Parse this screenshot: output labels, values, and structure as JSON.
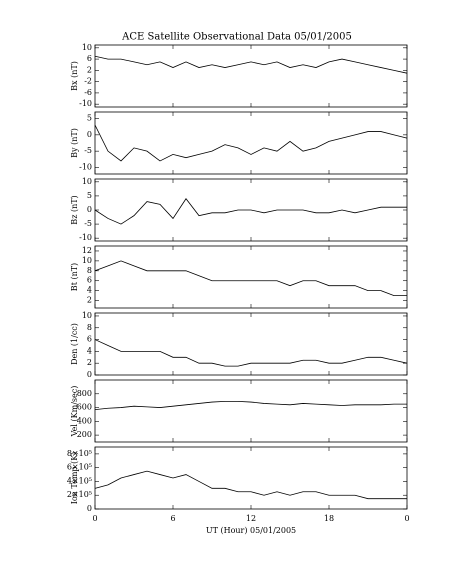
{
  "chart_data": [
    {
      "type": "line",
      "title": "ACE Satellite Observational Data   05/01/2005",
      "y_label": "Bx (nT)",
      "x": [
        0,
        1,
        2,
        3,
        4,
        5,
        6,
        7,
        8,
        9,
        10,
        11,
        12,
        13,
        14,
        15,
        16,
        17,
        18,
        19,
        20,
        21,
        22,
        23,
        24
      ],
      "values": [
        7,
        6,
        6,
        5,
        4,
        5,
        3,
        5,
        3,
        4,
        3,
        4,
        5,
        4,
        5,
        3,
        4,
        3,
        5,
        6,
        5,
        4,
        3,
        2,
        1
      ],
      "xlim": [
        0,
        24
      ],
      "ylim": [
        -11,
        11
      ],
      "yticks": [
        -10,
        -6,
        -2,
        2,
        6,
        10
      ],
      "color": "#000000"
    },
    {
      "type": "line",
      "y_label": "By (nT)",
      "x": [
        0,
        1,
        2,
        3,
        4,
        5,
        6,
        7,
        8,
        9,
        10,
        11,
        12,
        13,
        14,
        15,
        16,
        17,
        18,
        19,
        20,
        21,
        22,
        23,
        24
      ],
      "values": [
        3,
        -5,
        -8,
        -4,
        -5,
        -8,
        -6,
        -7,
        -6,
        -5,
        -3,
        -4,
        -6,
        -4,
        -5,
        -2,
        -5,
        -4,
        -2,
        -1,
        0,
        1,
        1,
        0,
        -1
      ],
      "xlim": [
        0,
        24
      ],
      "ylim": [
        -12,
        7
      ],
      "yticks": [
        -10,
        -5,
        0,
        5
      ],
      "color": "#000000"
    },
    {
      "type": "line",
      "y_label": "Bz (nT)",
      "x": [
        0,
        1,
        2,
        3,
        4,
        5,
        6,
        7,
        8,
        9,
        10,
        11,
        12,
        13,
        14,
        15,
        16,
        17,
        18,
        19,
        20,
        21,
        22,
        23,
        24
      ],
      "values": [
        0,
        -3,
        -5,
        -2,
        3,
        2,
        -3,
        4,
        -2,
        -1,
        -1,
        0,
        0,
        -1,
        0,
        0,
        0,
        -1,
        -1,
        0,
        -1,
        0,
        1,
        1,
        1
      ],
      "xlim": [
        0,
        24
      ],
      "ylim": [
        -11,
        11
      ],
      "yticks": [
        -10,
        -5,
        0,
        5,
        10
      ],
      "color": "#000000"
    },
    {
      "type": "line",
      "y_label": "Bt (nT)",
      "x": [
        0,
        1,
        2,
        3,
        4,
        5,
        6,
        7,
        8,
        9,
        10,
        11,
        12,
        13,
        14,
        15,
        16,
        17,
        18,
        19,
        20,
        21,
        22,
        23,
        24
      ],
      "values": [
        8,
        9,
        10,
        9,
        8,
        8,
        8,
        8,
        7,
        6,
        6,
        6,
        6,
        6,
        6,
        5,
        6,
        6,
        5,
        5,
        5,
        4,
        4,
        3,
        3
      ],
      "xlim": [
        0,
        24
      ],
      "ylim": [
        0.5,
        13
      ],
      "yticks": [
        2,
        4,
        6,
        8,
        10,
        12
      ],
      "color": "#000000"
    },
    {
      "type": "line",
      "y_label": "Den (1/cc)",
      "x": [
        0,
        1,
        2,
        3,
        4,
        5,
        6,
        7,
        8,
        9,
        10,
        11,
        12,
        13,
        14,
        15,
        16,
        17,
        18,
        19,
        20,
        21,
        22,
        23,
        24
      ],
      "values": [
        6,
        5,
        4,
        4,
        4,
        4,
        3,
        3,
        2,
        2,
        1.5,
        1.5,
        2,
        2,
        2,
        2,
        2.5,
        2.5,
        2,
        2,
        2.5,
        3,
        3,
        2.5,
        2
      ],
      "xlim": [
        0,
        24
      ],
      "ylim": [
        0,
        10.5
      ],
      "yticks": [
        0,
        2,
        4,
        6,
        8,
        10
      ],
      "color": "#000000"
    },
    {
      "type": "line",
      "y_label": "Vel (Km/sec)",
      "x": [
        0,
        1,
        2,
        3,
        4,
        5,
        6,
        7,
        8,
        9,
        10,
        11,
        12,
        13,
        14,
        15,
        16,
        17,
        18,
        19,
        20,
        21,
        22,
        23,
        24
      ],
      "values": [
        570,
        590,
        600,
        620,
        610,
        600,
        620,
        640,
        660,
        680,
        690,
        690,
        680,
        660,
        650,
        640,
        660,
        650,
        640,
        630,
        640,
        640,
        640,
        650,
        650
      ],
      "xlim": [
        0,
        24
      ],
      "ylim": [
        100,
        1000
      ],
      "yticks": [
        200,
        400,
        600,
        800
      ],
      "color": "#000000"
    },
    {
      "type": "line",
      "y_label": "Ion Temp (K)",
      "x_label": "UT (Hour)  05/01/2005",
      "x": [
        0,
        1,
        2,
        3,
        4,
        5,
        6,
        7,
        8,
        9,
        10,
        11,
        12,
        13,
        14,
        15,
        16,
        17,
        18,
        19,
        20,
        21,
        22,
        23,
        24
      ],
      "values": [
        300000,
        350000,
        450000,
        500000,
        550000,
        500000,
        450000,
        500000,
        400000,
        300000,
        300000,
        250000,
        250000,
        200000,
        250000,
        200000,
        250000,
        250000,
        200000,
        200000,
        200000,
        150000,
        150000,
        150000,
        150000
      ],
      "xlim": [
        0,
        24
      ],
      "ylim": [
        0,
        900000
      ],
      "yticks": [
        0,
        {
          "value": 200000,
          "label": "2×10⁵"
        },
        {
          "value": 400000,
          "label": "4×10⁵"
        },
        {
          "value": 600000,
          "label": "6×10⁵"
        },
        {
          "value": 800000,
          "label": "8×10⁵"
        }
      ],
      "xticks": [
        0,
        6,
        12,
        18,
        {
          "value": 24,
          "label": "0"
        }
      ],
      "color": "#000000"
    }
  ]
}
